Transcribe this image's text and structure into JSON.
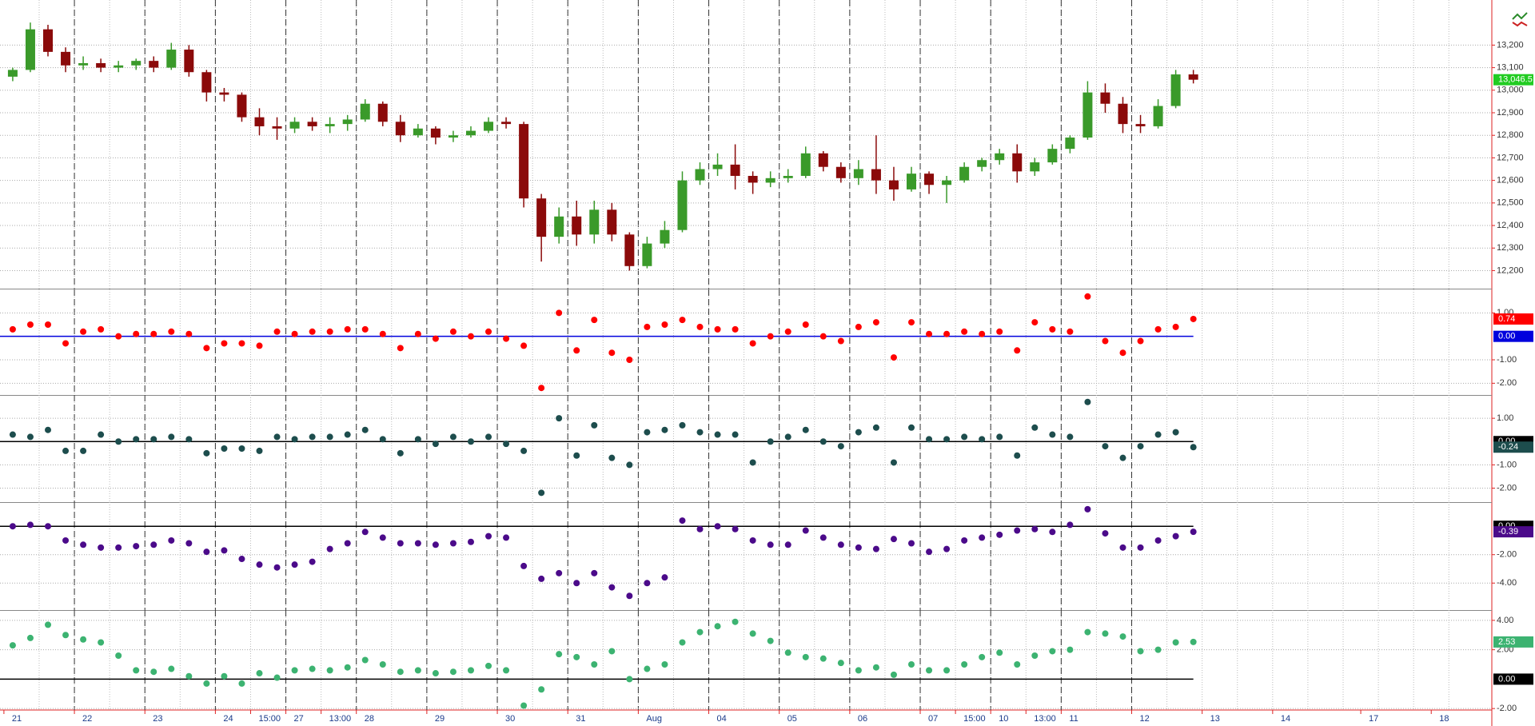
{
  "chart_data": [
    {
      "type": "candlestick",
      "up_color": "#3a9a2a",
      "down_color": "#8b0a0a",
      "grid": true,
      "categories": [
        "21",
        null,
        null,
        null,
        "22",
        null,
        null,
        null,
        "23",
        null,
        null,
        null,
        "24",
        null,
        "15:00",
        null,
        "27",
        null,
        "13:00",
        null,
        "28",
        null,
        null,
        null,
        "29",
        null,
        null,
        null,
        "30",
        null,
        null,
        null,
        "31",
        null,
        null,
        null,
        "Aug",
        null,
        null,
        null,
        "04",
        null,
        null,
        null,
        "05",
        null,
        null,
        null,
        "06",
        null,
        null,
        null,
        "07",
        null,
        "15:00",
        null,
        "10",
        null,
        "13:00",
        null,
        "11",
        null,
        null,
        null,
        "12",
        null,
        null,
        null,
        "13",
        null,
        null,
        null,
        "14",
        null,
        null,
        null,
        null,
        "17",
        null,
        null,
        null,
        "18",
        null,
        null
      ],
      "open": [
        13060,
        13090,
        13270,
        13170,
        13110,
        13120,
        13100,
        13110,
        13130,
        13100,
        13180,
        13080,
        12990,
        12980,
        12880,
        12840,
        12830,
        12860,
        12840,
        12850,
        12870,
        12940,
        12860,
        12800,
        12830,
        12790,
        12800,
        12820,
        12860,
        12850,
        12520,
        12350,
        12440,
        12360,
        12470,
        12360,
        12220,
        12320,
        12380,
        12600,
        12650,
        12670,
        12620,
        12590,
        12610,
        12620,
        12720,
        12660,
        12610,
        12650,
        12600,
        12560,
        12630,
        12580,
        12600,
        12660,
        12690,
        12720,
        12640,
        12680,
        12740,
        12790,
        12990,
        12940,
        12850,
        12840,
        12930,
        13070,
        null,
        null,
        null,
        null,
        null,
        null,
        null,
        null,
        null,
        null,
        null,
        null,
        null,
        null,
        null,
        null
      ],
      "high": [
        13100,
        13300,
        13290,
        13190,
        13150,
        13140,
        13130,
        13140,
        13150,
        13210,
        13200,
        13090,
        13010,
        12990,
        12920,
        12880,
        12880,
        12880,
        12880,
        12890,
        12960,
        12950,
        12890,
        12850,
        12840,
        12820,
        12840,
        12880,
        12880,
        12860,
        12540,
        12480,
        12510,
        12510,
        12500,
        12370,
        12350,
        12420,
        12640,
        12680,
        12720,
        12760,
        12640,
        12640,
        12650,
        12750,
        12730,
        12680,
        12690,
        12800,
        12660,
        12660,
        12640,
        12620,
        12680,
        12700,
        12740,
        12760,
        12700,
        12760,
        12800,
        13040,
        13030,
        12970,
        12890,
        12960,
        13090,
        13090,
        null,
        null,
        null,
        null,
        null,
        null,
        null,
        null,
        null,
        null,
        null,
        null,
        null,
        null,
        null,
        null
      ],
      "low": [
        13040,
        13080,
        13150,
        13080,
        13090,
        13080,
        13080,
        13090,
        13080,
        13090,
        13060,
        12950,
        12950,
        12860,
        12800,
        12780,
        12810,
        12820,
        12810,
        12820,
        12860,
        12840,
        12770,
        12790,
        12760,
        12770,
        12790,
        12810,
        12830,
        12480,
        12240,
        12320,
        12310,
        12320,
        12330,
        12200,
        12210,
        12300,
        12370,
        12580,
        12620,
        12560,
        12540,
        12570,
        12590,
        12610,
        12640,
        12590,
        12580,
        12540,
        12510,
        12550,
        12540,
        12500,
        12590,
        12640,
        12670,
        12590,
        12620,
        12670,
        12720,
        12780,
        12900,
        12810,
        12810,
        12830,
        12920,
        13030,
        null,
        null,
        null,
        null,
        null,
        null,
        null,
        null,
        null,
        null,
        null,
        null,
        null,
        null,
        null,
        null
      ],
      "close": [
        13090,
        13270,
        13170,
        13110,
        13120,
        13100,
        13110,
        13130,
        13100,
        13180,
        13080,
        12990,
        12980,
        12880,
        12840,
        12830,
        12860,
        12840,
        12850,
        12870,
        12940,
        12860,
        12800,
        12830,
        12790,
        12800,
        12820,
        12860,
        12850,
        12520,
        12350,
        12440,
        12360,
        12470,
        12360,
        12220,
        12320,
        12380,
        12600,
        12650,
        12670,
        12620,
        12590,
        12610,
        12620,
        12720,
        12660,
        12610,
        12650,
        12600,
        12560,
        12630,
        12580,
        12600,
        12660,
        12690,
        12720,
        12640,
        12680,
        12740,
        12790,
        12990,
        12940,
        12850,
        12840,
        12930,
        13070,
        13046.5,
        null,
        null,
        null,
        null,
        null,
        null,
        null,
        null,
        null,
        null,
        null,
        null,
        null,
        null,
        null,
        null
      ],
      "ylim": [
        12120,
        13400
      ],
      "yticks": [
        {
          "value": 12200,
          "label": "12,200"
        },
        {
          "value": 12300,
          "label": "12,300"
        },
        {
          "value": 12400,
          "label": "12,400"
        },
        {
          "value": 12500,
          "label": "12,500"
        },
        {
          "value": 12600,
          "label": "12,600"
        },
        {
          "value": 12700,
          "label": "12,700"
        },
        {
          "value": 12800,
          "label": "12,800"
        },
        {
          "value": 12900,
          "label": "12,900"
        },
        {
          "value": 13000,
          "label": "13,000"
        },
        {
          "value": 13100,
          "label": "13,100"
        },
        {
          "value": 13200,
          "label": "13,200"
        }
      ],
      "current_label": {
        "value": 13046.5,
        "label": "13,046.5",
        "color": "#22cc22"
      }
    },
    {
      "type": "dot",
      "color": "#ff0000",
      "ylim": [
        -2.5,
        2.0
      ],
      "values": [
        0.3,
        0.5,
        0.5,
        -0.3,
        0.2,
        0.3,
        0.0,
        0.1,
        0.1,
        0.2,
        0.1,
        -0.5,
        -0.3,
        -0.3,
        -0.4,
        0.2,
        0.1,
        0.2,
        0.2,
        0.3,
        0.3,
        0.1,
        -0.5,
        0.1,
        -0.1,
        0.2,
        0.0,
        0.2,
        -0.1,
        -0.4,
        -2.2,
        1.0,
        -0.6,
        0.7,
        -0.7,
        -1.0,
        0.4,
        0.5,
        0.7,
        0.4,
        0.3,
        0.3,
        -0.3,
        0.0,
        0.2,
        0.5,
        0.0,
        -0.2,
        0.4,
        0.6,
        -0.9,
        0.6,
        0.1,
        0.1,
        0.2,
        0.1,
        0.2,
        -0.6,
        0.6,
        0.3,
        0.2,
        1.7,
        -0.2,
        -0.7,
        -0.2,
        0.3,
        0.4,
        0.74,
        null,
        null,
        null,
        null,
        null,
        null,
        null,
        null,
        null,
        null,
        null,
        null,
        null,
        null,
        null,
        null
      ],
      "yticks": [
        {
          "value": 1,
          "label": "1.00"
        },
        {
          "value": -1,
          "label": "-1.00"
        },
        {
          "value": -2,
          "label": "-2.00"
        }
      ],
      "reference_line": {
        "value": 0,
        "label": "0.00",
        "color": "#0000dd"
      },
      "current_label": {
        "value": 0.74,
        "label": "0.74",
        "color": "#ff0000"
      }
    },
    {
      "type": "dot",
      "color": "#1d4d4d",
      "ylim": [
        -2.6,
        2.0
      ],
      "values": [
        0.3,
        0.2,
        0.5,
        -0.4,
        -0.4,
        0.3,
        0.0,
        0.1,
        0.1,
        0.2,
        0.1,
        -0.5,
        -0.3,
        -0.3,
        -0.4,
        0.2,
        0.1,
        0.2,
        0.2,
        0.3,
        0.5,
        0.1,
        -0.5,
        0.1,
        -0.1,
        0.2,
        0.0,
        0.2,
        -0.1,
        -0.4,
        -2.2,
        1.0,
        -0.6,
        0.7,
        -0.7,
        -1.0,
        0.4,
        0.5,
        0.7,
        0.4,
        0.3,
        0.3,
        -0.9,
        0.0,
        0.2,
        0.5,
        0.0,
        -0.2,
        0.4,
        0.6,
        -0.9,
        0.6,
        0.1,
        0.1,
        0.2,
        0.1,
        0.2,
        -0.6,
        0.6,
        0.3,
        0.2,
        1.7,
        -0.2,
        -0.7,
        -0.2,
        0.3,
        0.4,
        -0.24,
        null,
        null,
        null,
        null,
        null,
        null,
        null,
        null,
        null,
        null,
        null,
        null,
        null,
        null,
        null,
        null
      ],
      "yticks": [
        {
          "value": 1,
          "label": "1.00"
        },
        {
          "value": -1,
          "label": "-1.00"
        },
        {
          "value": -2,
          "label": "-2.00"
        }
      ],
      "reference_line": {
        "value": 0,
        "label": "0.00",
        "color": "#000000"
      },
      "current_label": {
        "value": -0.24,
        "label": "-0.24",
        "color": "#1d4d4d"
      }
    },
    {
      "type": "dot",
      "color": "#4b0a8a",
      "ylim": [
        -5.9,
        1.7
      ],
      "values": [
        0,
        0.1,
        0,
        -1.0,
        -1.3,
        -1.5,
        -1.5,
        -1.4,
        -1.3,
        -1.0,
        -1.2,
        -1.8,
        -1.7,
        -2.3,
        -2.7,
        -2.9,
        -2.7,
        -2.5,
        -1.6,
        -1.2,
        -0.4,
        -0.8,
        -1.2,
        -1.2,
        -1.3,
        -1.2,
        -1.1,
        -0.7,
        -0.8,
        -2.8,
        -3.7,
        -3.3,
        -4.0,
        -3.3,
        -4.3,
        -4.9,
        -4.0,
        -3.6,
        0.4,
        -0.2,
        0,
        -0.2,
        -1.0,
        -1.3,
        -1.3,
        -0.3,
        -0.8,
        -1.3,
        -1.5,
        -1.6,
        -0.9,
        -1.2,
        -1.8,
        -1.6,
        -1.0,
        -0.8,
        -0.6,
        -0.3,
        -0.2,
        -0.4,
        0.1,
        1.2,
        -0.5,
        -1.5,
        -1.5,
        -1.0,
        -0.7,
        -0.39,
        null,
        null,
        null,
        null,
        null,
        null,
        null,
        null,
        null,
        null,
        null,
        null,
        null,
        null,
        null,
        null
      ],
      "yticks": [
        {
          "value": -2,
          "label": "-2.00"
        },
        {
          "value": -4,
          "label": "-4.00"
        }
      ],
      "reference_line": {
        "value": 0,
        "label": "0.00",
        "color": "#000000"
      },
      "current_label": {
        "value": -0.39,
        "label": "-0.39",
        "color": "#4b0a8a"
      }
    },
    {
      "type": "dot",
      "color": "#3cb371",
      "ylim": [
        -2.1,
        4.7
      ],
      "values": [
        2.3,
        2.8,
        3.7,
        3.0,
        2.7,
        2.5,
        1.6,
        0.6,
        0.5,
        0.7,
        0.2,
        -0.3,
        0.2,
        -0.3,
        0.4,
        0.1,
        0.6,
        0.7,
        0.6,
        0.8,
        1.3,
        1.0,
        0.5,
        0.6,
        0.4,
        0.5,
        0.6,
        0.9,
        0.6,
        -1.8,
        -0.7,
        1.7,
        1.5,
        1.0,
        1.9,
        0.0,
        0.7,
        1.0,
        2.5,
        3.2,
        3.6,
        3.9,
        3.1,
        2.6,
        1.8,
        1.5,
        1.4,
        1.1,
        0.6,
        0.8,
        0.3,
        1.0,
        0.6,
        0.6,
        1.0,
        1.5,
        1.8,
        1.0,
        1.6,
        1.9,
        2.0,
        3.2,
        3.1,
        2.9,
        1.9,
        2.0,
        2.5,
        2.53,
        null,
        null,
        null,
        null,
        null,
        null,
        null,
        null,
        null,
        null,
        null,
        null,
        null,
        null,
        null,
        null
      ],
      "yticks": [
        {
          "value": 4,
          "label": "4.00"
        },
        {
          "value": 2,
          "label": "2.00"
        },
        {
          "value": -2,
          "label": "-2.00"
        }
      ],
      "reference_line": {
        "value": 0,
        "label": "0.00",
        "color": "#000000"
      },
      "current_label": {
        "value": 2.53,
        "label": "2.53",
        "color": "#3cb371"
      }
    }
  ]
}
